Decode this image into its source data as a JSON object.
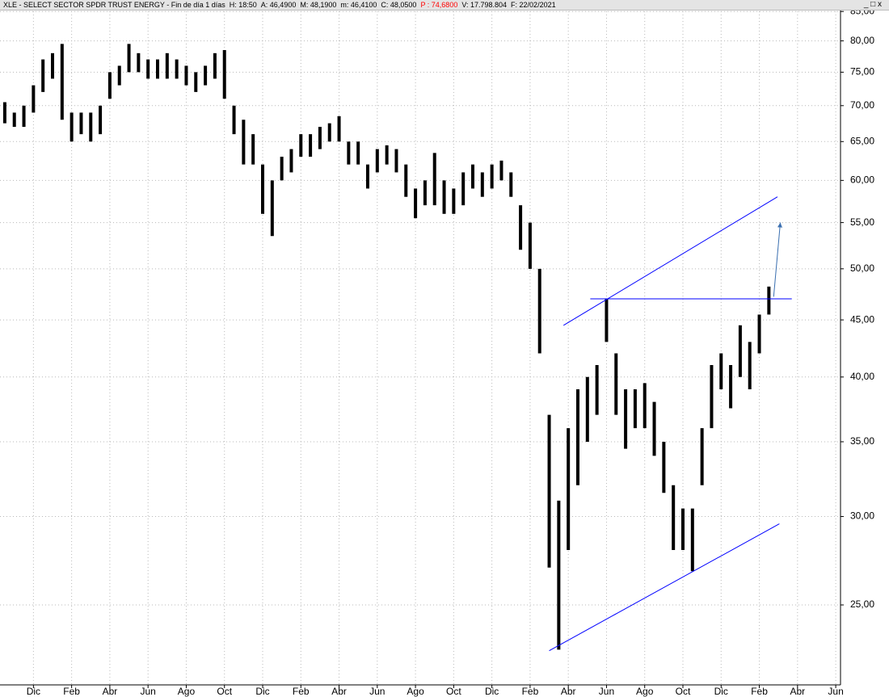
{
  "header": {
    "title": "XLE - SELECT SECTOR SPDR TRUST ENERGY - Fin de día 1 días",
    "fields": [
      {
        "text": "H: 18:50"
      },
      {
        "text": "A: 46,4900"
      },
      {
        "text": "M: 48,1900"
      },
      {
        "text": "m: 46,4100"
      },
      {
        "text": "C: 48,0500"
      },
      {
        "text": "P : 74,6800",
        "color": "#ff0000"
      },
      {
        "text": "V: 17.798.804"
      },
      {
        "text": "F: 22/02/2021"
      }
    ]
  },
  "chart_data": {
    "type": "hilo",
    "log_scale": true,
    "grid": true,
    "categories": [
      null,
      null,
      null,
      "Dic",
      null,
      null,
      null,
      "Feb",
      null,
      null,
      null,
      "Abr",
      null,
      null,
      null,
      "Jun",
      null,
      null,
      null,
      "Ago",
      null,
      null,
      null,
      "Oct",
      null,
      null,
      null,
      "Dic",
      null,
      null,
      null,
      "Feb",
      null,
      null,
      null,
      "Abr",
      null,
      null,
      null,
      "Jun",
      null,
      null,
      null,
      "Ago",
      null,
      null,
      null,
      "Oct",
      null,
      null,
      null,
      "Dic",
      null,
      null,
      null,
      "Feb",
      null,
      null,
      null,
      "Abr",
      null,
      null,
      null,
      "Jun",
      null,
      null,
      null,
      "Ago",
      null,
      null,
      null,
      "Oct",
      null,
      null,
      null,
      "Dic",
      null,
      null,
      null,
      "Feb",
      null,
      null,
      null,
      "Abr",
      null,
      null,
      null,
      "Jun"
    ],
    "series": [
      {
        "name": "High",
        "color": "#000000",
        "values": [
          70.5,
          69,
          70,
          73,
          77,
          78,
          79.5,
          69,
          69,
          69,
          70,
          75,
          76,
          79.5,
          78,
          77,
          77,
          78,
          77,
          76,
          75,
          76,
          78,
          78.5,
          70,
          68,
          66,
          62,
          60,
          63,
          64,
          66,
          66,
          67,
          67.5,
          68.5,
          65,
          65,
          62,
          64,
          64.5,
          64,
          62,
          59,
          60,
          63.5,
          60,
          59,
          61,
          62,
          61,
          62,
          62.5,
          61,
          57,
          55,
          50,
          37,
          31,
          36,
          39,
          40,
          41,
          47,
          42,
          39,
          39,
          39.5,
          38,
          35,
          32,
          30.5,
          30.5,
          36,
          41,
          42,
          41,
          44.5,
          43,
          45.5,
          48.2,
          null,
          null,
          null,
          null,
          null,
          null,
          null
        ]
      },
      {
        "name": "Low",
        "color": "#000000",
        "values": [
          67.5,
          67,
          67,
          69,
          72,
          74,
          68,
          65,
          66,
          65,
          66,
          71,
          73,
          75,
          75,
          74,
          74,
          74,
          74,
          73,
          72,
          73,
          74,
          71,
          66,
          62,
          62,
          56,
          53.5,
          60,
          61,
          63,
          63,
          64,
          65,
          65,
          62,
          62,
          59,
          61,
          62,
          61,
          58,
          55.5,
          57,
          57,
          56,
          56,
          57,
          59,
          58,
          59,
          60,
          58,
          52,
          50,
          42,
          27,
          22.8,
          28,
          32,
          35,
          37,
          43,
          37,
          34.5,
          36,
          36,
          34,
          31.5,
          28,
          28,
          26.8,
          32,
          36,
          39,
          37.5,
          40,
          39,
          42,
          45.5,
          null,
          null,
          null,
          null,
          null,
          null,
          null
        ]
      }
    ],
    "ylim": [
      21.2,
      85.6
    ],
    "yticks": [
      {
        "value": 25,
        "label": "25,00"
      },
      {
        "value": 30,
        "label": "30,00"
      },
      {
        "value": 35,
        "label": "35,00"
      },
      {
        "value": 40,
        "label": "40,00"
      },
      {
        "value": 45,
        "label": "45,00"
      },
      {
        "value": 50,
        "label": "50,00"
      },
      {
        "value": 55,
        "label": "55,00"
      },
      {
        "value": 60,
        "label": "60,00"
      },
      {
        "value": 65,
        "label": "65,00"
      },
      {
        "value": 70,
        "label": "70,00"
      },
      {
        "value": 75,
        "label": "75,00"
      },
      {
        "value": 80,
        "label": "80,00"
      },
      {
        "value": 85,
        "label": "85,00"
      }
    ],
    "lines": [
      {
        "x": [
          58.5,
          80.9
        ],
        "y": [
          44.5,
          58.0
        ],
        "color": "#0000ff"
      },
      {
        "x": [
          57.0,
          81.1
        ],
        "y": [
          22.75,
          29.55
        ],
        "color": "#0000ff"
      },
      {
        "x": [
          61.3,
          82.4
        ],
        "y": [
          47,
          47
        ],
        "color": "#0000ff"
      },
      {
        "x": [
          80.5,
          81.2
        ],
        "y": [
          47.2,
          55.0
        ],
        "color": "#3a6fb0",
        "arrow": true
      }
    ]
  }
}
